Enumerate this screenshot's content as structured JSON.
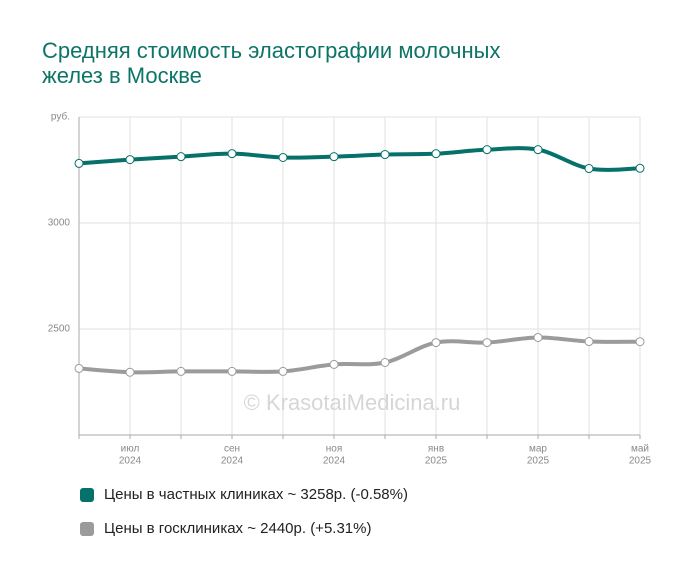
{
  "chart_data": {
    "type": "line",
    "title": "Средняя стоимость эластографии молочных желез в Москве",
    "watermark": "© KrasotaiMedicina.ru",
    "categories": [
      null,
      [
        "июл",
        "2024"
      ],
      null,
      [
        "сен",
        "2024"
      ],
      null,
      [
        "ноя",
        "2024"
      ],
      null,
      [
        "янв",
        "2025"
      ],
      null,
      [
        "мар",
        "2025"
      ],
      null,
      [
        "май",
        "2025"
      ]
    ],
    "series": [
      {
        "name": "Цены в частных клиниках ~ 3258р. (-0.58%)",
        "color": "#05716a",
        "values": [
          3281,
          3299,
          3313,
          3327,
          3309,
          3313,
          3323,
          3327,
          3346,
          3346,
          3257,
          3258
        ]
      },
      {
        "name": "Цены в госклиниках ~ 2440р. (+5.31%)",
        "color": "#9b9b9b",
        "values": [
          2314,
          2296,
          2300,
          2300,
          2300,
          2333,
          2342,
          2436,
          2436,
          2460,
          2441,
          2440
        ]
      }
    ],
    "ylim": [
      2000,
      3500
    ],
    "yticks": [
      2500,
      3000,
      {
        "value": 3500,
        "label": "руб."
      }
    ],
    "grid": true
  }
}
